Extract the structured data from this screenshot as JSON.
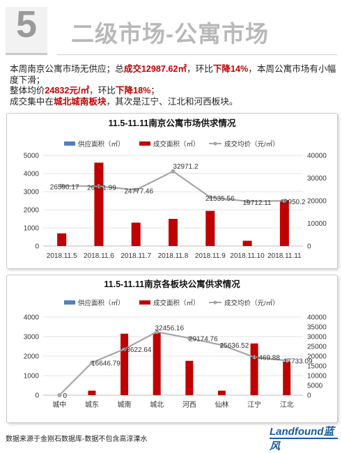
{
  "header": {
    "number": "5",
    "title": "二级市场-公寓市场"
  },
  "summary": {
    "l1a": "本周南京公寓市场无供应；总",
    "l1b": "成交12987.62㎡",
    "l1c": "，环比",
    "l1d": "下降14%",
    "l1e": "，本周公寓市场有小幅度下滑；",
    "l2a": "整体均价",
    "l2b": "24832元/㎡",
    "l2c": "，环比",
    "l2d": "下降18%",
    "l2e": "；",
    "l3a": "成交集中在",
    "l3b": "城北城南板块",
    "l3c": "，其次是江宁、江北和河西板块。"
  },
  "legend": {
    "supply": "供应面积（㎡）",
    "deal": "成交面积（㎡）",
    "price": "成交均价（元/㎡）"
  },
  "colors": {
    "supply": "#4f81bd",
    "deal": "#c00000",
    "price": "#a6a6a6"
  },
  "chart_data": [
    {
      "type": "bar",
      "title": "11.5-11.11南京公寓市场供求情况",
      "categories": [
        "2018.11.5",
        "2018.11.6",
        "2018.11.7",
        "2018.11.8",
        "2018.11.9",
        "2018.11.10",
        "2018.11.11"
      ],
      "series": [
        {
          "name": "供应面积（㎡）",
          "values": [
            0,
            0,
            0,
            0,
            0,
            0,
            0
          ]
        },
        {
          "name": "成交面积（㎡）",
          "values": [
            700,
            4600,
            1290,
            1500,
            1940,
            290,
            2530
          ]
        },
        {
          "name": "成交均价（元/㎡）",
          "type": "line",
          "axis": "right",
          "values": [
            26590.17,
            26351.99,
            24777.46,
            32971.2,
            21535.56,
            19712.11,
            19950.2
          ],
          "labels": [
            "26590.17",
            "26351.99",
            "24777.46",
            "32971.2",
            "21535.56",
            "19712.11",
            "19950.2"
          ]
        }
      ],
      "ylim": [
        0,
        5000
      ],
      "yticks": [
        0,
        1000,
        2000,
        3000,
        4000,
        5000
      ],
      "y2lim": [
        0,
        40000
      ],
      "y2ticks": [
        0,
        10000,
        20000,
        30000,
        40000
      ],
      "legend": "top"
    },
    {
      "type": "bar",
      "title": "11.5-11.11南京各板块公寓供求情况",
      "categories": [
        "城中",
        "城东",
        "城南",
        "城北",
        "河西",
        "仙林",
        "江宁",
        "江北"
      ],
      "series": [
        {
          "name": "供应面积（㎡）",
          "values": [
            0,
            0,
            0,
            0,
            0,
            0,
            0,
            0
          ]
        },
        {
          "name": "成交面积（㎡）",
          "values": [
            0,
            230,
            3150,
            3200,
            1760,
            230,
            2650,
            1720
          ]
        },
        {
          "name": "成交均价（元/㎡）",
          "type": "line",
          "axis": "right",
          "values": [
            0,
            16646.79,
            23622.64,
            32456.16,
            29174.76,
            25636.52,
            19469.88,
            17733.09
          ],
          "labels": [
            "0",
            "16646.79",
            "23622.64",
            "32456.16",
            "29174.76",
            "25636.52",
            "19469.88",
            "17733.09"
          ]
        }
      ],
      "ylim": [
        0,
        4000
      ],
      "yticks": [
        0,
        1000,
        2000,
        3000,
        4000
      ],
      "y2lim": [
        0,
        40000
      ],
      "y2ticks": [
        0,
        5000,
        10000,
        15000,
        20000,
        25000,
        30000,
        35000,
        40000
      ],
      "legend": "top"
    }
  ],
  "footer": {
    "source": "数据来源于金刚石数据库-数据不包含高淳溧水"
  },
  "logo": {
    "text": "Landfound蓝风"
  }
}
